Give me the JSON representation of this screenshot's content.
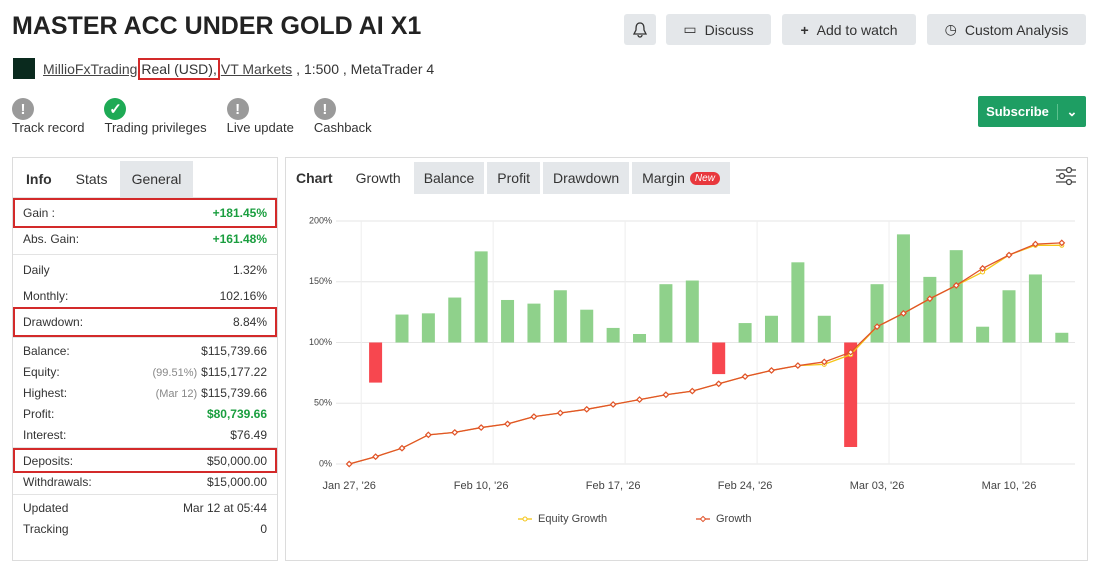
{
  "header": {
    "title": "MASTER ACC UNDER GOLD AI X1",
    "buttons": [
      "Discuss",
      "Add to watch",
      "Custom Analysis"
    ],
    "account": {
      "owner": "MillioFxTrading",
      "type": "Real (USD),",
      "broker": "VT Markets",
      "details": ", 1:500 , MetaTrader 4"
    }
  },
  "badges": [
    {
      "label": "Track record",
      "status": "warning"
    },
    {
      "label": "Trading privileges",
      "status": "ok"
    },
    {
      "label": "Live update",
      "status": "warning"
    },
    {
      "label": "Cashback",
      "status": "warning"
    }
  ],
  "subscribe": "Subscribe",
  "stats": {
    "tabs": [
      "Info",
      "Stats",
      "General"
    ],
    "groups": [
      {
        "rows": [
          {
            "label": "Gain :",
            "value": "+181.45%",
            "color": "#1a9e3f",
            "highlight": true
          },
          {
            "label": "Abs. Gain:",
            "value": "+161.48%",
            "color": "#1a9e3f"
          }
        ]
      },
      {
        "rows": [
          {
            "label": "Daily",
            "value": "1.32%"
          },
          {
            "label": "Monthly:",
            "value": "102.16%"
          },
          {
            "label": "Drawdown:",
            "value": "8.84%",
            "highlight": true
          }
        ]
      },
      {
        "rows": [
          {
            "label": "Balance:",
            "value": "$115,739.66"
          },
          {
            "label": "Equity:",
            "note": "(99.51%)",
            "value": "$115,177.22"
          },
          {
            "label": "Highest:",
            "note": "(Mar 12)",
            "value": "$115,739.66"
          },
          {
            "label": "Profit:",
            "value": "$80,739.66",
            "color": "#1a9e3f"
          },
          {
            "label": "Interest:",
            "value": "$76.49"
          }
        ]
      },
      {
        "rows": [
          {
            "label": "Deposits:",
            "value": "$50,000.00",
            "highlight": true
          },
          {
            "label": "Withdrawals:",
            "value": "$15,000.00"
          }
        ]
      },
      {
        "rows": [
          {
            "label": "Updated",
            "value": "Mar 12 at 05:44"
          },
          {
            "label": "Tracking",
            "value": "0"
          }
        ]
      }
    ]
  },
  "chart_tabs": {
    "title": "Chart",
    "tabs": [
      "Growth",
      "Balance",
      "Profit",
      "Drawdown",
      "Margin"
    ],
    "badge": "New"
  },
  "chart_data": {
    "type": "line",
    "categories": [
      "Jan 27, '26",
      null,
      null,
      null,
      null,
      "Feb 10, '26",
      null,
      null,
      null,
      null,
      "Feb 17, '26",
      null,
      null,
      null,
      null,
      "Feb 24, '26",
      null,
      null,
      null,
      null,
      "Mar 03, '26",
      null,
      null,
      null,
      null,
      "Mar 10, '26",
      null,
      null
    ],
    "ylim": [
      0,
      200
    ],
    "yticks": [
      {
        "value": 0,
        "label": "0%"
      },
      {
        "value": 50,
        "label": "50%"
      },
      {
        "value": 100,
        "label": "100%"
      },
      {
        "value": 150,
        "label": "150%"
      },
      {
        "value": 200,
        "label": "200%"
      }
    ],
    "y2lim": [
      -10,
      10
    ],
    "grid": true,
    "series": [
      {
        "type": "bar",
        "axis": "y2",
        "color": "#8fd18b",
        "negative_color": "#f7474f",
        "values": [
          null,
          -3.3,
          2.3,
          2.4,
          3.7,
          7.5,
          3.5,
          3.2,
          4.3,
          2.7,
          1.2,
          0.7,
          4.8,
          5.1,
          -2.6,
          1.6,
          2.2,
          6.6,
          2.2,
          -8.6,
          4.8,
          8.9,
          5.4,
          7.6,
          1.3,
          4.3,
          5.6,
          0.8
        ]
      },
      {
        "name": "Equity Growth",
        "type": "line",
        "color": "#f5c518",
        "marker": "circle",
        "values": [
          0,
          6,
          13,
          24,
          26,
          30,
          33,
          39,
          42,
          45,
          49,
          53,
          57,
          60,
          66,
          72,
          77,
          81,
          82,
          90,
          113,
          124,
          136,
          147,
          158,
          172,
          180,
          180
        ]
      },
      {
        "name": "Growth",
        "type": "line",
        "color": "#e0532b",
        "marker": "diamond",
        "values": [
          0,
          6,
          13,
          24,
          26,
          30,
          33,
          39,
          42,
          45,
          49,
          53,
          57,
          60,
          66,
          72,
          77,
          81,
          84,
          92,
          113,
          124,
          136,
          147,
          161,
          172,
          181,
          182
        ]
      }
    ]
  }
}
